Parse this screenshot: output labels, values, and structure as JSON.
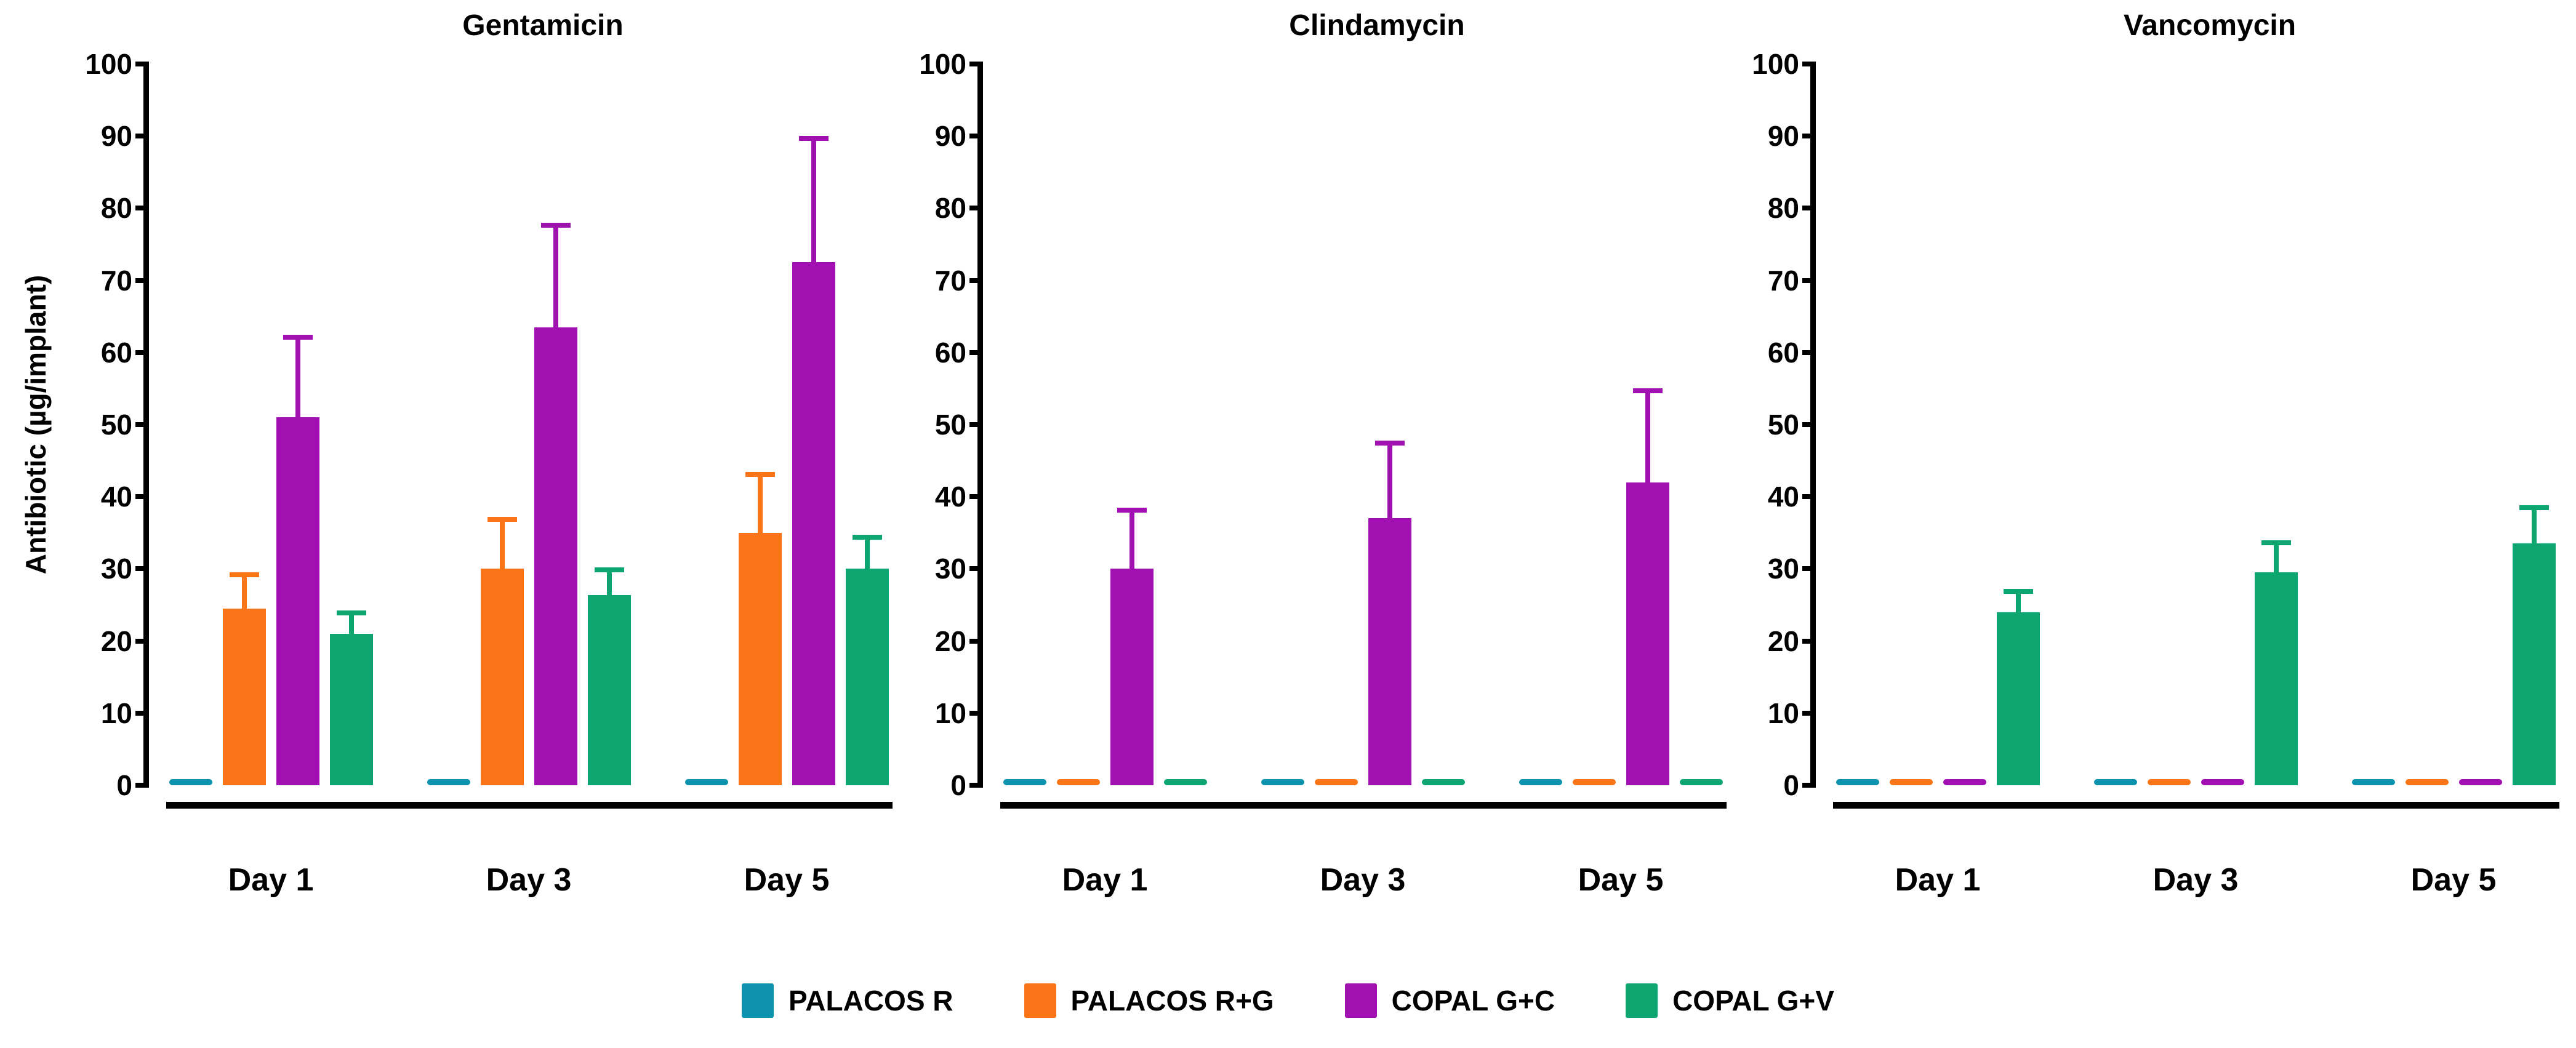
{
  "figure": {
    "y_axis_label": "Antibiotic (µg/implant)",
    "background": "#FFFFFF",
    "text_color": "#000000",
    "legend": [
      {
        "label": "PALACOS R",
        "color": "#0E93AF"
      },
      {
        "label": "PALACOS R+G",
        "color": "#FA7517"
      },
      {
        "label": "COPAL G+C",
        "color": "#A111B2"
      },
      {
        "label": "COPAL G+V",
        "color": "#0DA671"
      }
    ]
  },
  "chart_data": [
    {
      "type": "bar",
      "title": "Gentamicin",
      "categories": [
        "Day 1",
        "Day 3",
        "Day 5"
      ],
      "xlabel": "",
      "ylabel": "Antibiotic (µg/implant)",
      "ylim": [
        0,
        100
      ],
      "ytick_step": 10,
      "grid": false,
      "error_bars": "upper",
      "legend_position": "bottom",
      "series": [
        {
          "name": "PALACOS R",
          "color": "#0E93AF",
          "values": [
            0.4,
            0.4,
            0.4
          ],
          "errors": [
            0,
            0,
            0
          ]
        },
        {
          "name": "PALACOS R+G",
          "color": "#FA7517",
          "values": [
            24.5,
            30,
            35
          ],
          "errors": [
            5,
            7.2,
            8.4
          ]
        },
        {
          "name": "COPAL G+C",
          "color": "#A111B2",
          "values": [
            51,
            63.5,
            72.5
          ],
          "errors": [
            11.5,
            14.5,
            17.5
          ]
        },
        {
          "name": "COPAL G+V",
          "color": "#0DA671",
          "values": [
            21,
            26.4,
            30
          ],
          "errors": [
            3.2,
            3.8,
            4.7
          ]
        }
      ]
    },
    {
      "type": "bar",
      "title": "Clindamycin",
      "categories": [
        "Day 1",
        "Day 3",
        "Day 5"
      ],
      "xlabel": "",
      "ylabel": "",
      "ylim": [
        0,
        100
      ],
      "ytick_step": 10,
      "grid": false,
      "error_bars": "upper",
      "legend_position": "bottom",
      "series": [
        {
          "name": "PALACOS R",
          "color": "#0E93AF",
          "values": [
            0.4,
            0.4,
            0.4
          ],
          "errors": [
            0,
            0,
            0
          ]
        },
        {
          "name": "PALACOS R+G",
          "color": "#FA7517",
          "values": [
            0.4,
            0.4,
            0.4
          ],
          "errors": [
            0,
            0,
            0
          ]
        },
        {
          "name": "COPAL G+C",
          "color": "#A111B2",
          "values": [
            30,
            37,
            42
          ],
          "errors": [
            8.5,
            10.8,
            13
          ]
        },
        {
          "name": "COPAL G+V",
          "color": "#0DA671",
          "values": [
            0.4,
            0.4,
            0.4
          ],
          "errors": [
            0,
            0,
            0
          ]
        }
      ]
    },
    {
      "type": "bar",
      "title": "Vancomycin",
      "categories": [
        "Day 1",
        "Day 3",
        "Day 5"
      ],
      "xlabel": "",
      "ylabel": "",
      "ylim": [
        0,
        100
      ],
      "ytick_step": 10,
      "grid": false,
      "error_bars": "upper",
      "legend_position": "bottom",
      "series": [
        {
          "name": "PALACOS R",
          "color": "#0E93AF",
          "values": [
            0.4,
            0.4,
            0.4
          ],
          "errors": [
            0,
            0,
            0
          ]
        },
        {
          "name": "PALACOS R+G",
          "color": "#FA7517",
          "values": [
            0.4,
            0.4,
            0.4
          ],
          "errors": [
            0,
            0,
            0
          ]
        },
        {
          "name": "COPAL G+C",
          "color": "#A111B2",
          "values": [
            0.4,
            0.4,
            0.4
          ],
          "errors": [
            0,
            0,
            0
          ]
        },
        {
          "name": "COPAL G+V",
          "color": "#0DA671",
          "values": [
            24,
            29.5,
            33.5
          ],
          "errors": [
            3.2,
            4.5,
            5.3
          ]
        }
      ]
    }
  ]
}
